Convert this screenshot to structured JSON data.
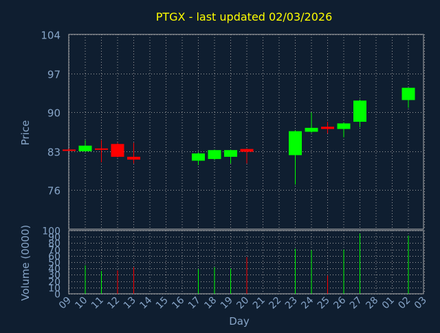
{
  "colors": {
    "background": "#0f1e30",
    "title": "#ffff00",
    "axis_text": "#87a5c8",
    "grid": "#a0a0a0",
    "up": "#00ff00",
    "down": "#ff0000",
    "frame": "#b0b0b0"
  },
  "chart_data": [
    {
      "type": "candlestick",
      "title": "PTGX - last updated 02/03/2026",
      "ylabel": "Price",
      "ylim": [
        69,
        104
      ],
      "yticks": [
        "76",
        "83",
        "90",
        "97",
        "104"
      ],
      "grid": true,
      "x_tick_labels": [
        "09",
        "10",
        "11",
        "12",
        "13",
        "14",
        "15",
        "16",
        "17",
        "18",
        "19",
        "20",
        "21",
        "22",
        "23",
        "24",
        "25",
        "26",
        "27",
        "28",
        "01",
        "02",
        "03"
      ],
      "candles": [
        {
          "day": "09",
          "open": 83.3,
          "high": 83.5,
          "low": 83.1,
          "close": 83.2
        },
        {
          "day": "10",
          "open": 83.0,
          "high": 85.0,
          "low": 82.9,
          "close": 84.0
        },
        {
          "day": "11",
          "open": 83.5,
          "high": 85.0,
          "low": 81.0,
          "close": 83.3
        },
        {
          "day": "12",
          "open": 84.3,
          "high": 84.5,
          "low": 81.9,
          "close": 82.0
        },
        {
          "day": "13",
          "open": 82.0,
          "high": 84.5,
          "low": 80.8,
          "close": 81.5
        },
        {
          "day": "17",
          "open": 81.3,
          "high": 82.8,
          "low": 80.5,
          "close": 82.6
        },
        {
          "day": "18",
          "open": 81.6,
          "high": 83.3,
          "low": 81.4,
          "close": 83.2
        },
        {
          "day": "19",
          "open": 82.0,
          "high": 83.3,
          "low": 80.8,
          "close": 83.2
        },
        {
          "day": "20",
          "open": 83.4,
          "high": 83.5,
          "low": 80.8,
          "close": 82.9
        },
        {
          "day": "23",
          "open": 82.3,
          "high": 86.8,
          "low": 77.0,
          "close": 86.6
        },
        {
          "day": "24",
          "open": 86.5,
          "high": 90.0,
          "low": 86.3,
          "close": 87.2
        },
        {
          "day": "25",
          "open": 87.4,
          "high": 88.3,
          "low": 86.2,
          "close": 87.0
        },
        {
          "day": "26",
          "open": 87.0,
          "high": 88.2,
          "low": 85.5,
          "close": 88.0
        },
        {
          "day": "27",
          "open": 88.3,
          "high": 92.3,
          "low": 87.3,
          "close": 92.1
        },
        {
          "day": "02",
          "open": 92.2,
          "high": 94.4,
          "low": 90.8,
          "close": 94.4
        }
      ]
    },
    {
      "type": "bar",
      "xlabel": "Day",
      "ylabel": "Volume (0000)",
      "ylim": [
        0,
        100
      ],
      "yticks": [
        "0",
        "10",
        "20",
        "30",
        "40",
        "50",
        "60",
        "70",
        "80",
        "90",
        "100"
      ],
      "grid": true,
      "x_tick_labels": [
        "09",
        "10",
        "11",
        "12",
        "13",
        "14",
        "15",
        "16",
        "17",
        "18",
        "19",
        "20",
        "21",
        "22",
        "23",
        "24",
        "25",
        "26",
        "27",
        "28",
        "01",
        "02",
        "03"
      ],
      "bars": [
        {
          "day": "10",
          "value": 45,
          "direction": "up"
        },
        {
          "day": "11",
          "value": 36,
          "direction": "up"
        },
        {
          "day": "12",
          "value": 37,
          "direction": "down"
        },
        {
          "day": "13",
          "value": 42,
          "direction": "down"
        },
        {
          "day": "17",
          "value": 39,
          "direction": "up"
        },
        {
          "day": "18",
          "value": 42,
          "direction": "up"
        },
        {
          "day": "19",
          "value": 40,
          "direction": "up"
        },
        {
          "day": "20",
          "value": 58,
          "direction": "down"
        },
        {
          "day": "23",
          "value": 71,
          "direction": "up"
        },
        {
          "day": "24",
          "value": 69,
          "direction": "up"
        },
        {
          "day": "25",
          "value": 29,
          "direction": "down"
        },
        {
          "day": "26",
          "value": 70,
          "direction": "up"
        },
        {
          "day": "27",
          "value": 95,
          "direction": "up"
        },
        {
          "day": "02",
          "value": 92,
          "direction": "up"
        }
      ]
    }
  ]
}
